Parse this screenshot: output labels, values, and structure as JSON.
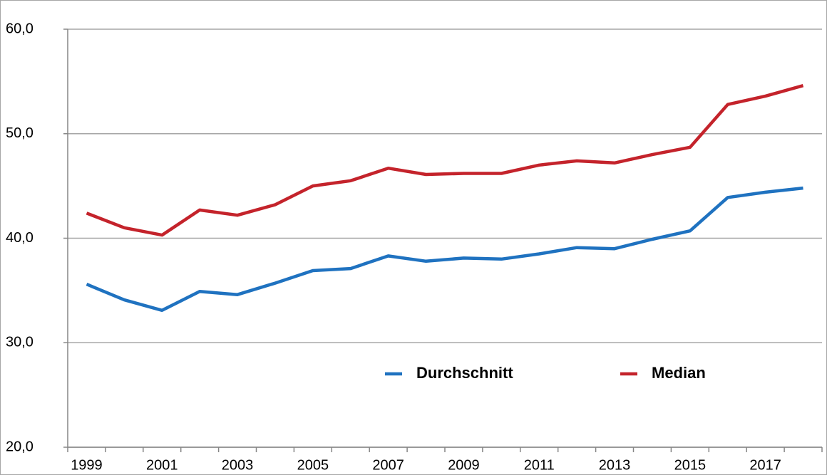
{
  "chart_data": {
    "type": "line",
    "categories": [
      "1999",
      null,
      "2001",
      null,
      "2003",
      null,
      "2005",
      null,
      "2007",
      null,
      "2009",
      null,
      "2011",
      null,
      "2013",
      null,
      "2015",
      null,
      "2017",
      null
    ],
    "series": [
      {
        "name": "Durchschnitt",
        "color": "#1f72c0",
        "values": [
          35.6,
          34.1,
          33.1,
          34.9,
          34.6,
          35.7,
          36.9,
          37.1,
          38.3,
          37.8,
          38.1,
          38.0,
          38.5,
          39.1,
          39.0,
          39.9,
          40.7,
          43.9,
          44.4,
          44.8
        ]
      },
      {
        "name": "Median",
        "color": "#c4232b",
        "values": [
          42.4,
          41.0,
          40.3,
          42.7,
          42.2,
          43.2,
          45.0,
          45.5,
          46.7,
          46.1,
          46.2,
          46.2,
          47.0,
          47.4,
          47.2,
          48.0,
          48.7,
          52.8,
          53.6,
          54.6
        ]
      }
    ],
    "ylim": [
      20,
      60
    ],
    "yticks": [
      {
        "value": 20,
        "label": "20,0"
      },
      {
        "value": 30,
        "label": "30,0"
      },
      {
        "value": 40,
        "label": "40,0"
      },
      {
        "value": 50,
        "label": "50,0"
      },
      {
        "value": 60,
        "label": "60,0"
      }
    ],
    "grid": true
  }
}
